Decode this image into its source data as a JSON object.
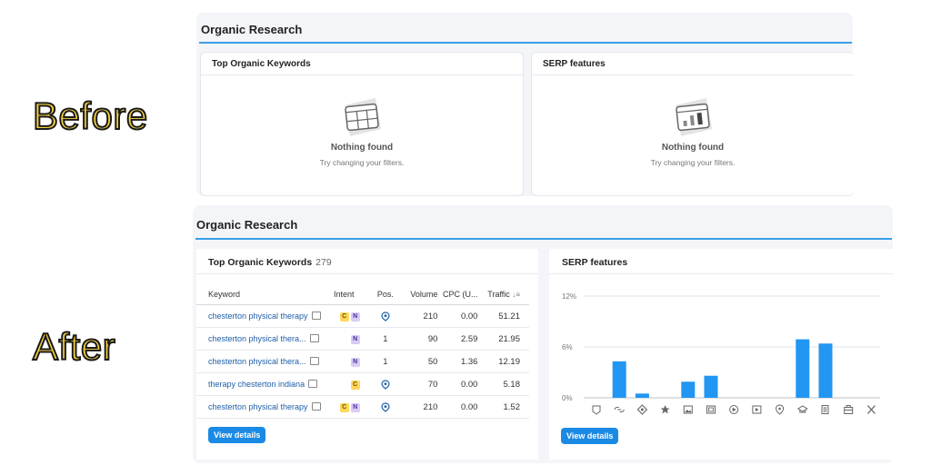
{
  "labels": {
    "before": "Before",
    "after": "After"
  },
  "before": {
    "title": "Organic Research",
    "keywords_card": {
      "title": "Top Organic Keywords",
      "empty_title": "Nothing found",
      "empty_sub": "Try changing your filters."
    },
    "serp_card": {
      "title": "SERP features",
      "empty_title": "Nothing found",
      "empty_sub": "Try changing your filters."
    }
  },
  "after": {
    "title": "Organic Research",
    "keywords": {
      "title": "Top Organic Keywords",
      "count": "279",
      "columns": [
        "Keyword",
        "Intent",
        "Pos.",
        "Volume",
        "CPC (U...",
        "Traffic"
      ],
      "rows": [
        {
          "keyword": "chesterton physical therapy",
          "intent": [
            "C",
            "N"
          ],
          "pos": "",
          "volume": "210",
          "cpc": "0.00",
          "traffic": "51.21"
        },
        {
          "keyword": "chesterton physical thera...",
          "intent": [
            "N"
          ],
          "pos": "1",
          "volume": "90",
          "cpc": "2.59",
          "traffic": "21.95"
        },
        {
          "keyword": "chesterton physical thera...",
          "intent": [
            "N"
          ],
          "pos": "1",
          "volume": "50",
          "cpc": "1.36",
          "traffic": "12.19"
        },
        {
          "keyword": "therapy chesterton indiana",
          "intent": [
            "C"
          ],
          "pos": "",
          "volume": "70",
          "cpc": "0.00",
          "traffic": "5.18"
        },
        {
          "keyword": "chesterton physical therapy",
          "intent": [
            "C",
            "N"
          ],
          "pos": "",
          "volume": "210",
          "cpc": "0.00",
          "traffic": "1.52"
        }
      ],
      "view_details": "View details"
    },
    "serp": {
      "title": "SERP features",
      "view_details": "View details"
    }
  },
  "chart_data": {
    "type": "bar",
    "title": "",
    "xlabel": "",
    "ylabel": "",
    "ylim": [
      0,
      12
    ],
    "yticks": [
      "12%",
      "6%",
      "0%"
    ],
    "categories": [
      "featured-snippet",
      "sitelinks",
      "knowledge-panel",
      "reviews",
      "image",
      "image-pack",
      "video",
      "featured-video",
      "local-pack",
      "people-also-ask",
      "news",
      "shopping",
      "twitter"
    ],
    "values": [
      0,
      4.3,
      0.5,
      0,
      1.9,
      2.6,
      0,
      0,
      0,
      6.9,
      6.4,
      0,
      0
    ],
    "bar_color": "#2196f3",
    "grid": true
  }
}
